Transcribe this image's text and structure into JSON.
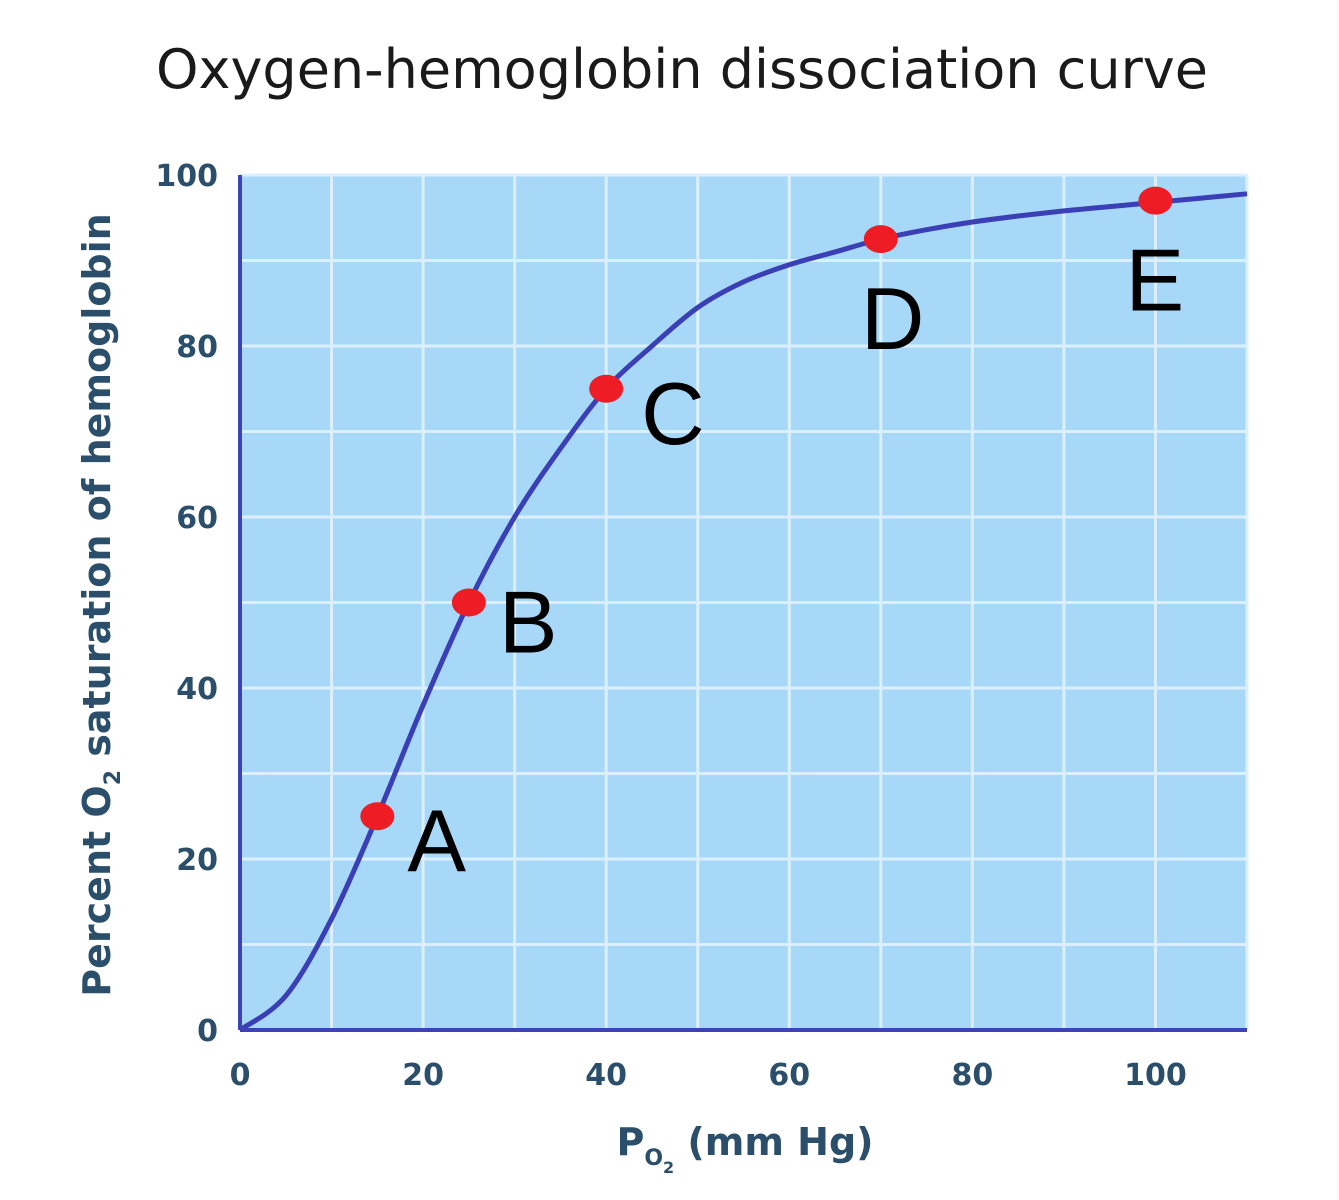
{
  "chart_data": {
    "type": "line",
    "title": "Oxygen-hemoglobin dissociation curve",
    "xlabel": {
      "main": "P",
      "sub": "O",
      "sub2": "2",
      "rest": " (mm Hg)"
    },
    "ylabel": {
      "before": "Percent O",
      "sub": "2",
      "after": " saturation of hemoglobin"
    },
    "xlim": [
      0,
      110
    ],
    "ylim": [
      0,
      100
    ],
    "xticks": [
      0,
      20,
      40,
      60,
      80,
      100
    ],
    "yticks": [
      0,
      20,
      40,
      60,
      80,
      100
    ],
    "grid": true,
    "curve": {
      "x": [
        0,
        5,
        10,
        15,
        20,
        25,
        30,
        35,
        40,
        45,
        50,
        55,
        60,
        65,
        70,
        75,
        80,
        85,
        90,
        95,
        100,
        105,
        110
      ],
      "y": [
        0,
        4,
        13,
        25,
        38,
        50,
        60,
        68,
        75,
        80,
        84.5,
        87.5,
        89.5,
        91,
        92.5,
        93.6,
        94.5,
        95.2,
        95.8,
        96.3,
        96.8,
        97.3,
        97.8
      ]
    },
    "points": [
      {
        "label": "A",
        "x": 15,
        "y": 25
      },
      {
        "label": "B",
        "x": 25,
        "y": 50
      },
      {
        "label": "C",
        "x": 40,
        "y": 75
      },
      {
        "label": "D",
        "x": 70,
        "y": 92.5
      },
      {
        "label": "E",
        "x": 100,
        "y": 97
      }
    ],
    "colors": {
      "plot_background": "#a8d8f8",
      "grid": "#dcefff",
      "axis": "#3d42b8",
      "curve": "#3a3fb5",
      "point": "#ee1c24",
      "tick_text": "#2b4f6b"
    }
  }
}
